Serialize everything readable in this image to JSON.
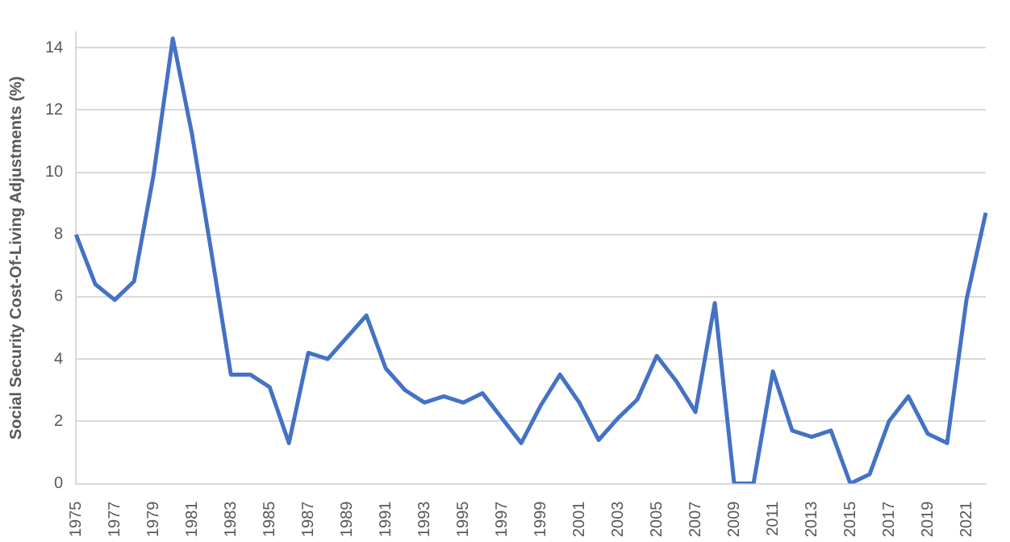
{
  "chart_data": {
    "type": "line",
    "ylabel": "Social Security Cost-Of-Living Adjustments (%)",
    "categories": [
      "1975",
      null,
      "1977",
      null,
      "1979",
      null,
      "1981",
      null,
      "1983",
      null,
      "1985",
      null,
      "1987",
      null,
      "1989",
      null,
      "1991",
      null,
      "1993",
      null,
      "1995",
      null,
      "1997",
      null,
      "1999",
      null,
      "2001",
      null,
      "2003",
      null,
      "2005",
      null,
      "2007",
      null,
      "2009",
      null,
      "2011",
      null,
      "2013",
      null,
      "2015",
      null,
      "2017",
      null,
      "2019",
      null,
      "2021",
      null
    ],
    "series": [
      {
        "color": "#4472c4",
        "values": [
          8.0,
          6.4,
          5.9,
          6.5,
          9.9,
          14.3,
          11.2,
          7.4,
          3.5,
          3.5,
          3.1,
          1.3,
          4.2,
          4.0,
          4.7,
          5.4,
          3.7,
          3.0,
          2.6,
          2.8,
          2.6,
          2.9,
          2.1,
          1.3,
          2.5,
          3.5,
          2.6,
          1.4,
          2.1,
          2.7,
          4.1,
          3.3,
          2.3,
          5.8,
          0,
          0,
          3.6,
          1.7,
          1.5,
          1.7,
          0,
          0.3,
          2.0,
          2.8,
          1.6,
          1.3,
          5.9,
          8.7
        ]
      }
    ],
    "ylim": [
      0,
      14.5
    ],
    "yticks": [
      0,
      2,
      4,
      6,
      8,
      10,
      12,
      14
    ],
    "grid": "y",
    "legend": false,
    "marker": "none",
    "line_style": "solid"
  }
}
